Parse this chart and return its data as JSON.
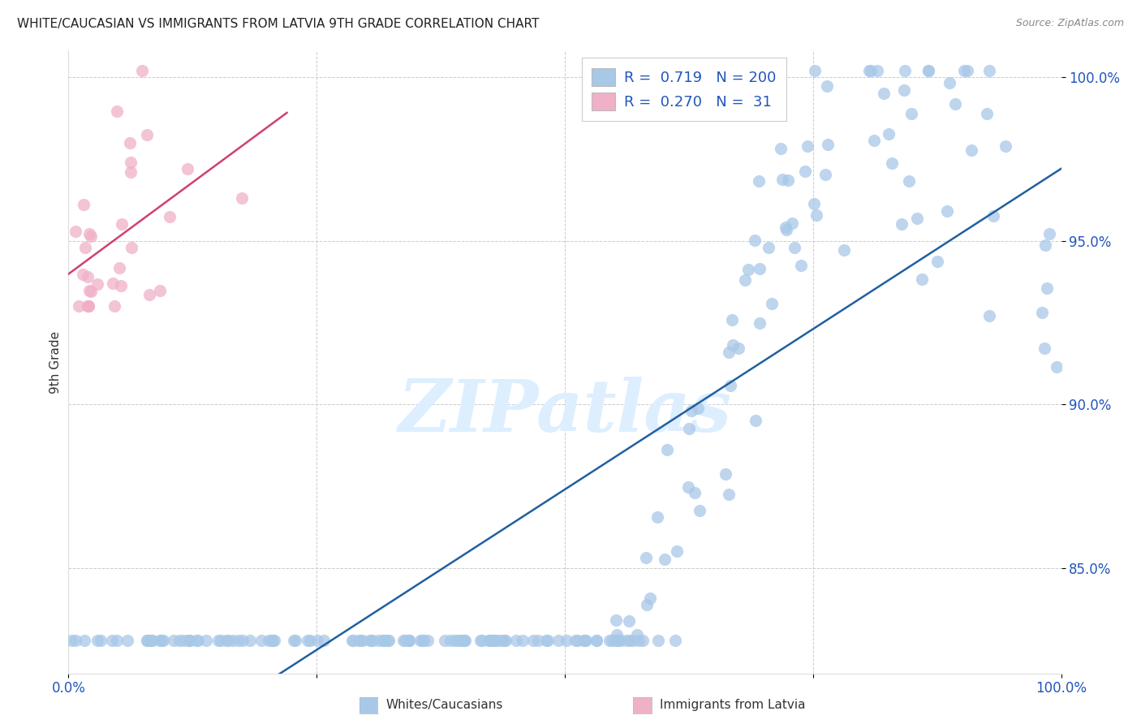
{
  "title": "WHITE/CAUCASIAN VS IMMIGRANTS FROM LATVIA 9TH GRADE CORRELATION CHART",
  "source": "Source: ZipAtlas.com",
  "ylabel": "9th Grade",
  "watermark": "ZIPatlas",
  "blue_R": 0.719,
  "blue_N": 200,
  "pink_R": 0.27,
  "pink_N": 31,
  "blue_color": "#a8c8e8",
  "pink_color": "#f0b0c8",
  "blue_line_color": "#2060a0",
  "pink_line_color": "#d04070",
  "legend_text_color": "#2255bb",
  "title_color": "#222222",
  "grid_color": "#cccccc",
  "axis_label_color": "#2255bb",
  "background_color": "#ffffff",
  "xlim": [
    0.0,
    1.0
  ],
  "ylim": [
    0.818,
    1.008
  ],
  "yticks": [
    0.85,
    0.9,
    0.95,
    1.0
  ],
  "ytick_labels": [
    "85.0%",
    "90.0%",
    "95.0%",
    "100.0%"
  ]
}
